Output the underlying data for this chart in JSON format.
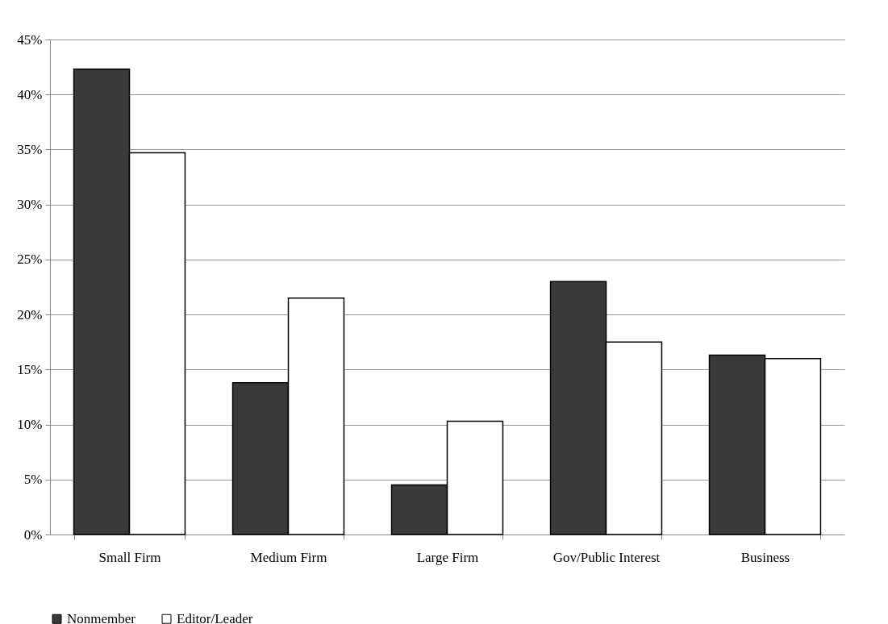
{
  "chart_data": {
    "type": "bar",
    "categories": [
      "Small Firm",
      "Medium Firm",
      "Large Firm",
      "Gov/Public Interest",
      "Business"
    ],
    "series": [
      {
        "name": "Nonmember",
        "color": "#3a3a3a",
        "values": [
          42.3,
          13.8,
          4.5,
          23.0,
          16.3
        ]
      },
      {
        "name": "Editor/Leader",
        "color": "#ffffff",
        "values": [
          34.7,
          21.5,
          10.3,
          17.5,
          16.0
        ]
      }
    ],
    "ylim": [
      0,
      45
    ],
    "yticks": [
      {
        "value": 0,
        "label": "0%"
      },
      {
        "value": 5,
        "label": "5%"
      },
      {
        "value": 10,
        "label": "10%"
      },
      {
        "value": 15,
        "label": "15%"
      },
      {
        "value": 20,
        "label": "20%"
      },
      {
        "value": 25,
        "label": "25%"
      },
      {
        "value": 30,
        "label": "30%"
      },
      {
        "value": 35,
        "label": "35%"
      },
      {
        "value": 40,
        "label": "40%"
      },
      {
        "value": 45,
        "label": "45%"
      }
    ],
    "grid": "y",
    "legend": "bottom"
  }
}
